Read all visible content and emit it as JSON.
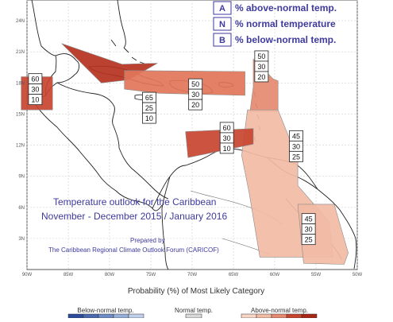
{
  "map": {
    "extent": {
      "lon_min": -90,
      "lon_max": -50,
      "lat_min": 0,
      "lat_max": 26
    },
    "lon_ticks": [
      -90,
      -85,
      -80,
      -75,
      -70,
      -65,
      -60,
      -55,
      -50
    ],
    "lat_ticks": [
      3,
      6,
      9,
      12,
      15,
      18,
      21,
      24
    ],
    "lon_tick_labels": [
      "90W",
      "85W",
      "80W",
      "75W",
      "70W",
      "65W",
      "60W",
      "55W",
      "50W"
    ],
    "lat_tick_labels": [
      "3N",
      "6N",
      "9N",
      "12N",
      "15N",
      "18N",
      "21N",
      "24N"
    ]
  },
  "legend_key": [
    {
      "letter": "A",
      "text": "% above-normal temp."
    },
    {
      "letter": "N",
      "text": "% normal temperature"
    },
    {
      "letter": "B",
      "text": "% below-normal temp."
    }
  ],
  "regions": [
    {
      "id": "central-america-west",
      "color": "#c8442f",
      "polygon": [
        [
          -90.7,
          18.6
        ],
        [
          -86.9,
          18.6
        ],
        [
          -86.9,
          15.4
        ],
        [
          -90.7,
          15.4
        ]
      ],
      "probs": {
        "A": "60",
        "N": "30",
        "B": "10"
      },
      "label_at": [
        -89,
        17.4
      ]
    },
    {
      "id": "cuba-bahamas",
      "color": "#b5321f",
      "polygon": [
        [
          -85.8,
          21.8
        ],
        [
          -78.5,
          19.8
        ],
        [
          -74.2,
          19.9
        ],
        [
          -77.7,
          18.3
        ],
        [
          -81,
          18
        ]
      ],
      "probs": {
        "A": "65",
        "N": "25",
        "B": "10"
      },
      "label_at": [
        -75.2,
        15.6
      ]
    },
    {
      "id": "jamaica-hispaniola",
      "color": "#e27559",
      "polygon": [
        [
          -78.2,
          19.2
        ],
        [
          -63.6,
          19.1
        ],
        [
          -63.6,
          16.8
        ],
        [
          -74,
          17
        ],
        [
          -78.2,
          17.4
        ]
      ],
      "probs": {
        "A": "50",
        "N": "30",
        "B": "20"
      },
      "label_at": [
        -69.6,
        16.9
      ]
    },
    {
      "id": "leeward-islands",
      "color": "#e58a70",
      "polygon": [
        [
          -62.6,
          20.3
        ],
        [
          -60.2,
          18.4
        ],
        [
          -59.6,
          18.2
        ],
        [
          -59.6,
          15.2
        ],
        [
          -63,
          15.2
        ],
        [
          -62.6,
          17.6
        ]
      ],
      "probs": {
        "A": "50",
        "N": "30",
        "B": "20"
      },
      "label_at": [
        -61.6,
        19.6
      ]
    },
    {
      "id": "southern-caribbean-guianas",
      "color": "#f2bba5",
      "polygon": [
        [
          -63.3,
          15.4
        ],
        [
          -59.6,
          15.4
        ],
        [
          -57.2,
          10.6
        ],
        [
          -57.2,
          8.1
        ],
        [
          -53.4,
          4.6
        ],
        [
          -52.9,
          1.2
        ],
        [
          -61.8,
          1.2
        ],
        [
          -63.1,
          7.4
        ],
        [
          -64,
          11
        ]
      ],
      "probs": {
        "A": "45",
        "N": "30",
        "B": "25"
      },
      "label_at": [
        -57.4,
        11.9
      ]
    },
    {
      "id": "trinidad-venezuela",
      "color": "#c8442f",
      "polygon": [
        [
          -70.8,
          13.3
        ],
        [
          -62.6,
          13.6
        ],
        [
          -62.6,
          12.1
        ],
        [
          -70.5,
          10.8
        ]
      ],
      "probs": {
        "A": "60",
        "N": "30",
        "B": "10"
      },
      "label_at": [
        -65.8,
        12.7
      ]
    },
    {
      "id": "guianas-south",
      "color": "#f2bba5",
      "polygon": [
        [
          -57.2,
          6.3
        ],
        [
          -52.8,
          6.3
        ],
        [
          -51.1,
          1.6
        ],
        [
          -51.6,
          0.5
        ],
        [
          -56.5,
          0.6
        ]
      ],
      "probs": {
        "A": "45",
        "N": "30",
        "B": "25"
      },
      "label_at": [
        -55.9,
        3.9
      ]
    }
  ],
  "title": {
    "line1": "Temperature outlook for the Caribbean",
    "line2": "November - December 2015 / January 2016",
    "prepared_by": "Prepared by",
    "org": "The Caribbean Regional Climate Outlook Forum (CARICOF)"
  },
  "colorbar": {
    "heading": "Probability (%) of Most Likely Category",
    "below_label": "Below-normal temp.",
    "normal_label": "Normal temp.",
    "above_label": "Above-normal temp.",
    "below_colors": [
      "#2d4b9c",
      "#4a69b0",
      "#6d8bc4",
      "#96aed8",
      "#c0d0ea"
    ],
    "normal_color": "#d8d8d8",
    "above_colors": [
      "#f7d6c8",
      "#f2bba5",
      "#e58a70",
      "#c8442f",
      "#a82616"
    ]
  }
}
